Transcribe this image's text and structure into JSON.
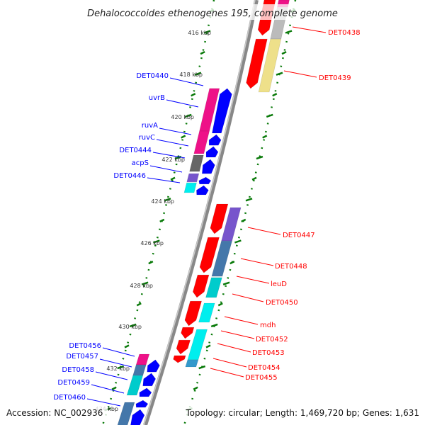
{
  "title": "Dehalococcoides ethenogenes 195, complete genome",
  "accession": "Accession: NC_002936",
  "topology": "Topology: circular; Length: 1,469,720 bp; Genes: 1,631",
  "colors": {
    "backbone": "#888888",
    "tick": "#0a7a0a",
    "left_label": "#0000ff",
    "right_label": "#ff0000"
  },
  "ticks": [
    "416 kbp",
    "418 kbp",
    "420 kbp",
    "422 kbp",
    "424 kbp",
    "426 kbp",
    "428 kbp",
    "430 kbp",
    "432 kbp",
    "434 kbp"
  ],
  "left_labels": [
    "DET0440",
    "uvrB",
    "ruvA",
    "ruvC",
    "DET0444",
    "acpS",
    "DET0446",
    "DET0456",
    "DET0457",
    "DET0458",
    "DET0459",
    "DET0460"
  ],
  "right_labels": [
    "DET0438",
    "DET0439",
    "DET0447",
    "DET0448",
    "leuD",
    "DET0450",
    "mdh",
    "DET0452",
    "DET0453",
    "DET0454",
    "DET0455"
  ],
  "features": {
    "plus_arrows": [
      [
        414.48,
        416.17
      ],
      [
        416.34,
        418.7
      ],
      [
        424.21,
        425.63
      ],
      [
        425.8,
        427.49
      ],
      [
        427.59,
        428.67
      ],
      [
        428.84,
        430.02
      ],
      [
        430.09,
        430.63
      ],
      [
        430.7,
        431.37
      ],
      [
        431.44,
        431.78
      ]
    ],
    "plus_boxes": [
      [
        414.48,
        414.82,
        "#ee1188"
      ],
      [
        414.82,
        416.34,
        "#bbbbbb"
      ],
      [
        416.34,
        418.87,
        "#eee08a"
      ],
      [
        424.38,
        425.97,
        "#7755cc"
      ],
      [
        425.97,
        427.66,
        "#4477aa"
      ],
      [
        427.72,
        428.67,
        "#00cccc"
      ],
      [
        428.94,
        429.85,
        "#00eeee"
      ],
      [
        430.19,
        431.64,
        "#00eeee"
      ],
      [
        431.64,
        431.98,
        "#3399cc"
      ]
    ],
    "minus_arrows": [
      [
        418.7,
        420.83
      ],
      [
        420.9,
        421.41
      ],
      [
        421.47,
        421.98
      ],
      [
        422.08,
        422.76
      ],
      [
        422.93,
        423.26
      ],
      [
        423.33,
        423.77
      ],
      [
        431.64,
        432.22
      ],
      [
        432.28,
        432.89
      ],
      [
        432.99,
        433.4
      ],
      [
        433.57,
        433.91
      ],
      [
        434.01,
        434.76
      ]
    ],
    "minus_boxes": [
      [
        418.7,
        420.73,
        "#ee1188"
      ],
      [
        420.73,
        421.81,
        "#ee1188"
      ],
      [
        421.88,
        422.66,
        "#666666"
      ],
      [
        422.76,
        423.16,
        "#7755cc"
      ],
      [
        423.2,
        423.67,
        "#00eeee"
      ],
      [
        431.37,
        431.88,
        "#ee1188"
      ],
      [
        431.88,
        432.39,
        "#4477aa"
      ],
      [
        432.39,
        433.33,
        "#00cccc"
      ],
      [
        433.67,
        434.76,
        "#4477aa"
      ]
    ]
  }
}
